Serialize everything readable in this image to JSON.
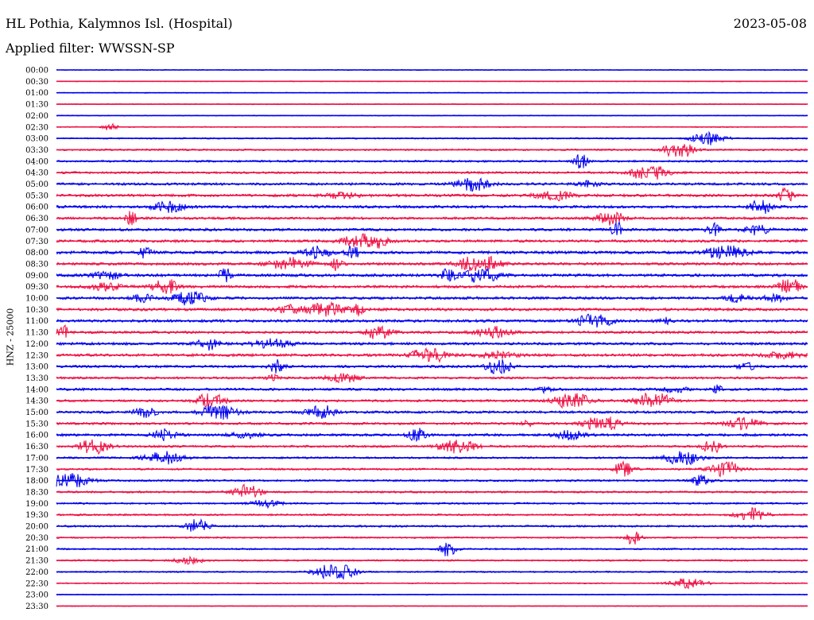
{
  "header": {
    "station": "HL Pothia, Kalymnos Isl. (Hospital)",
    "date": "2023-05-08",
    "filter_label": "Applied filter:",
    "filter_value": "WWSSN-SP"
  },
  "colors": {
    "blue": "#0000ee",
    "red": "#ee1144"
  },
  "chart_data": {
    "type": "line",
    "title": "HL Pothia, Kalymnos Isl. (Hospital)",
    "ylabel": "HNZ - 25000",
    "xlabel": "",
    "grid": false,
    "legend": "none",
    "trace_colors_alternate": [
      "blue",
      "red"
    ],
    "categories": [
      "00:00",
      "00:30",
      "01:00",
      "01:30",
      "02:00",
      "02:30",
      "03:00",
      "03:30",
      "04:00",
      "04:30",
      "05:00",
      "05:30",
      "06:00",
      "06:30",
      "07:00",
      "07:30",
      "08:00",
      "08:30",
      "09:00",
      "09:30",
      "10:00",
      "10:30",
      "11:00",
      "11:30",
      "12:00",
      "12:30",
      "13:00",
      "13:30",
      "14:00",
      "14:30",
      "15:00",
      "15:30",
      "16:00",
      "16:30",
      "17:00",
      "17:30",
      "18:00",
      "18:30",
      "19:00",
      "19:30",
      "20:00",
      "20:30",
      "21:00",
      "21:30",
      "22:00",
      "22:30",
      "23:00",
      "23:30"
    ],
    "series": [
      {
        "row_index": 0,
        "noise_level": 0.1
      },
      {
        "row_index": 1,
        "noise_level": 0.08
      },
      {
        "row_index": 2,
        "noise_level": 0.1
      },
      {
        "row_index": 3,
        "noise_level": 0.12
      },
      {
        "row_index": 4,
        "noise_level": 0.08
      },
      {
        "row_index": 5,
        "noise_level": 0.15
      },
      {
        "row_index": 6,
        "noise_level": 0.25
      },
      {
        "row_index": 7,
        "noise_level": 0.35
      },
      {
        "row_index": 8,
        "noise_level": 0.4
      },
      {
        "row_index": 9,
        "noise_level": 0.45
      },
      {
        "row_index": 10,
        "noise_level": 0.55
      },
      {
        "row_index": 11,
        "noise_level": 0.6
      },
      {
        "row_index": 12,
        "noise_level": 0.6
      },
      {
        "row_index": 13,
        "noise_level": 0.55
      },
      {
        "row_index": 14,
        "noise_level": 0.6
      },
      {
        "row_index": 15,
        "noise_level": 0.6
      },
      {
        "row_index": 16,
        "noise_level": 0.65
      },
      {
        "row_index": 17,
        "noise_level": 0.6
      },
      {
        "row_index": 18,
        "noise_level": 0.65
      },
      {
        "row_index": 19,
        "noise_level": 0.6
      },
      {
        "row_index": 20,
        "noise_level": 0.6
      },
      {
        "row_index": 21,
        "noise_level": 0.65
      },
      {
        "row_index": 22,
        "noise_level": 0.6
      },
      {
        "row_index": 23,
        "noise_level": 0.55
      },
      {
        "row_index": 24,
        "noise_level": 0.6
      },
      {
        "row_index": 25,
        "noise_level": 0.6
      },
      {
        "row_index": 26,
        "noise_level": 0.55
      },
      {
        "row_index": 27,
        "noise_level": 0.5
      },
      {
        "row_index": 28,
        "noise_level": 0.55
      },
      {
        "row_index": 29,
        "noise_level": 0.5
      },
      {
        "row_index": 30,
        "noise_level": 0.55
      },
      {
        "row_index": 31,
        "noise_level": 0.5
      },
      {
        "row_index": 32,
        "noise_level": 0.55
      },
      {
        "row_index": 33,
        "noise_level": 0.45
      },
      {
        "row_index": 34,
        "noise_level": 0.4
      },
      {
        "row_index": 35,
        "noise_level": 0.4
      },
      {
        "row_index": 36,
        "noise_level": 0.4
      },
      {
        "row_index": 37,
        "noise_level": 0.4
      },
      {
        "row_index": 38,
        "noise_level": 0.35
      },
      {
        "row_index": 39,
        "noise_level": 0.35
      },
      {
        "row_index": 40,
        "noise_level": 0.4
      },
      {
        "row_index": 41,
        "noise_level": 0.3
      },
      {
        "row_index": 42,
        "noise_level": 0.3
      },
      {
        "row_index": 43,
        "noise_level": 0.3
      },
      {
        "row_index": 44,
        "noise_level": 0.25
      },
      {
        "row_index": 45,
        "noise_level": 0.2
      },
      {
        "row_index": 46,
        "noise_level": 0.12
      },
      {
        "row_index": 47,
        "noise_level": 0.1
      }
    ]
  }
}
